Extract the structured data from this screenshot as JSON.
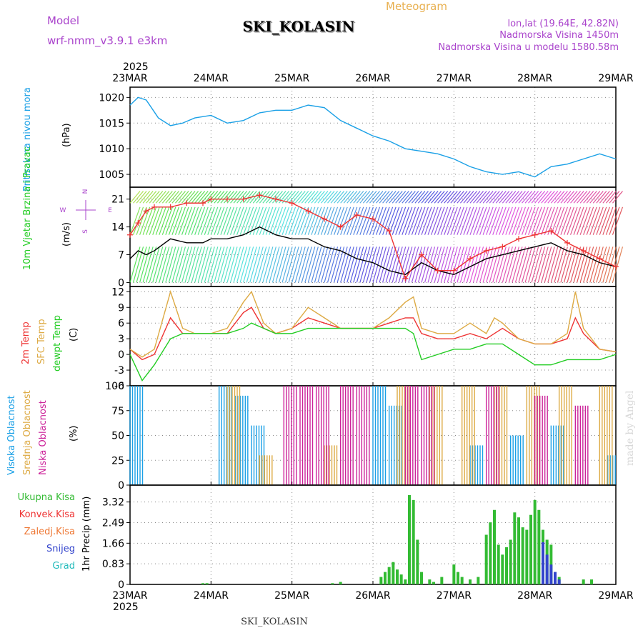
{
  "header": {
    "model_label": "Model",
    "model_name": "wrf-nmm_v3.9.1 e3km",
    "meteogram_label": "Meteogram",
    "station": "SKI_KOLASIN",
    "lonlat": "lon,lat (19.64E, 42.82N)",
    "elevation": "Nadmorska Visina 1450m",
    "model_elevation": "Nadmorska Visina u modelu 1580.58m",
    "made_by": "made by Angel",
    "footer_station": "SKI_KOLASIN"
  },
  "colors": {
    "pressure": "#1aa0e6",
    "wind_label": "#22cc22",
    "temp_2m": "#ee3333",
    "temp_sfc": "#ddaa44",
    "dewpoint": "#22cc22",
    "high_cloud": "#1aa0e6",
    "mid_cloud": "#ddaa44",
    "low_cloud": "#cc2299",
    "precip_total": "#33bb33",
    "precip_snow": "#3344cc",
    "wind_axis": "#aa44cc",
    "header_purple": "#aa44cc",
    "header_orange": "#e8b050"
  },
  "time_axis": {
    "year": "2025",
    "labels": [
      "23MAR",
      "24MAR",
      "25MAR",
      "26MAR",
      "27MAR",
      "28MAR",
      "29MAR"
    ]
  },
  "chart_data": [
    {
      "type": "line",
      "title": "Pritisak na nivou mora",
      "ylabel": "(hPa)",
      "ylim": [
        1002.5,
        1022
      ],
      "yticks": [
        "1005",
        "1010",
        "1015",
        "1020"
      ],
      "x_days": [
        0,
        0.1,
        0.2,
        0.35,
        0.5,
        0.65,
        0.8,
        1.0,
        1.2,
        1.4,
        1.6,
        1.8,
        2.0,
        2.2,
        2.4,
        2.6,
        2.8,
        3.0,
        3.2,
        3.4,
        3.6,
        3.8,
        4.0,
        4.2,
        4.4,
        4.6,
        4.8,
        5.0,
        5.2,
        5.4,
        5.6,
        5.8,
        6.0
      ],
      "series": [
        {
          "name": "MSLP",
          "values": [
            1018.5,
            1020.0,
            1019.5,
            1016.0,
            1014.5,
            1015.0,
            1016.0,
            1016.5,
            1015.0,
            1015.5,
            1017.0,
            1017.5,
            1017.5,
            1018.5,
            1018.0,
            1015.5,
            1014.0,
            1012.5,
            1011.5,
            1010.0,
            1009.5,
            1009.0,
            1008.0,
            1006.5,
            1005.5,
            1005.0,
            1005.5,
            1004.5,
            1006.5,
            1007.0,
            1008.0,
            1009.0,
            1008.0
          ]
        }
      ]
    },
    {
      "type": "line",
      "title": "10m Vjetar Brzina i Pravac",
      "ylabel": "(m/s)",
      "ylim": [
        -1,
        24
      ],
      "yticks": [
        "0",
        "7",
        "14",
        "21"
      ],
      "direction_legend": [
        "N",
        "E",
        "S",
        "W"
      ],
      "x_days": [
        0,
        0.1,
        0.2,
        0.3,
        0.5,
        0.7,
        0.9,
        1.0,
        1.2,
        1.4,
        1.6,
        1.8,
        2.0,
        2.2,
        2.4,
        2.6,
        2.8,
        3.0,
        3.2,
        3.4,
        3.6,
        3.8,
        4.0,
        4.2,
        4.4,
        4.6,
        4.8,
        5.0,
        5.2,
        5.4,
        5.6,
        5.8,
        6.0
      ],
      "series": [
        {
          "name": "Brzina",
          "values": [
            6,
            8,
            7,
            8,
            11,
            10,
            10,
            11,
            11,
            12,
            14,
            12,
            11,
            11,
            9,
            8,
            6,
            5,
            3,
            2,
            5,
            3,
            2,
            4,
            6,
            7,
            8,
            9,
            10,
            8,
            7,
            5,
            4
          ]
        },
        {
          "name": "Udari",
          "values": [
            12,
            15,
            18,
            19,
            19,
            20,
            20,
            21,
            21,
            21,
            22,
            21,
            20,
            18,
            16,
            14,
            17,
            16,
            13,
            1,
            7,
            3,
            3,
            6,
            8,
            9,
            11,
            12,
            13,
            10,
            8,
            6,
            4
          ]
        }
      ]
    },
    {
      "type": "line",
      "title": "2m Temp / SFC Temp / dewpt Temp",
      "ylabel": "(C)",
      "ylim": [
        -6,
        13
      ],
      "yticks": [
        "-6",
        "-3",
        "0",
        "3",
        "6",
        "9",
        "12"
      ],
      "x_days": [
        0,
        0.15,
        0.3,
        0.5,
        0.65,
        0.8,
        1.0,
        1.2,
        1.4,
        1.5,
        1.65,
        1.8,
        2.0,
        2.2,
        2.4,
        2.6,
        2.8,
        3.0,
        3.2,
        3.4,
        3.5,
        3.6,
        3.8,
        4.0,
        4.2,
        4.4,
        4.5,
        4.6,
        4.8,
        5.0,
        5.2,
        5.4,
        5.5,
        5.6,
        5.8,
        6.0
      ],
      "series": [
        {
          "name": "2m Temp",
          "values": [
            1,
            -1,
            0,
            7,
            4,
            4,
            4,
            4,
            8,
            9,
            5,
            4,
            5,
            7,
            6,
            5,
            5,
            5,
            6,
            7,
            7,
            4,
            3,
            3,
            4,
            3,
            4,
            5,
            3,
            2,
            2,
            3,
            7,
            4,
            1,
            0.5
          ]
        },
        {
          "name": "SFC Temp",
          "values": [
            1,
            -0.5,
            1,
            12,
            5,
            4,
            4,
            5,
            10,
            12,
            6,
            4,
            5,
            9,
            7,
            5,
            5,
            5,
            7,
            10,
            11,
            5,
            4,
            4,
            6,
            4,
            7,
            6,
            3,
            2,
            2,
            4,
            12,
            5,
            1,
            0.5
          ]
        },
        {
          "name": "dewpt Temp",
          "values": [
            0,
            -5,
            -2,
            3,
            4,
            4,
            4,
            4,
            5,
            6,
            5,
            4,
            4,
            5,
            5,
            5,
            5,
            5,
            5,
            5,
            4,
            -1,
            0,
            1,
            1,
            2,
            2,
            2,
            0,
            -2,
            -2,
            -1,
            -1,
            -1,
            -1,
            0
          ]
        }
      ]
    },
    {
      "type": "bar",
      "title": "Visoka / Srednja / Niska Oblacnost",
      "ylabel": "(%)",
      "ylim": [
        0,
        100
      ],
      "yticks": [
        "0",
        "25",
        "50",
        "75",
        "100"
      ],
      "series": [
        {
          "name": "Visoka Oblacnost",
          "days": [
            0.0,
            1.1,
            1.3,
            1.5,
            3.0,
            3.2,
            4.2,
            4.7,
            5.2,
            5.9
          ],
          "values": [
            100,
            100,
            90,
            60,
            100,
            80,
            40,
            50,
            60,
            30
          ]
        },
        {
          "name": "Srednja Oblacnost",
          "days": [
            1.2,
            1.6,
            2.4,
            3.3,
            3.7,
            4.1,
            4.5,
            4.9,
            5.3,
            5.8
          ],
          "values": [
            100,
            30,
            40,
            100,
            100,
            100,
            100,
            100,
            100,
            100
          ]
        },
        {
          "name": "Niska Oblacnost",
          "days": [
            1.9,
            2.1,
            2.3,
            2.6,
            2.8,
            3.4,
            3.6,
            4.4,
            5.0,
            5.5
          ],
          "values": [
            100,
            100,
            100,
            100,
            100,
            100,
            100,
            100,
            90,
            80
          ]
        }
      ]
    },
    {
      "type": "bar",
      "title": "1hr Precip",
      "ylabel": "1hr Precip (mm)",
      "ylim": [
        0,
        4
      ],
      "yticks": [
        "0",
        "0.83",
        "1.66",
        "2.49",
        "3.32"
      ],
      "legend": [
        "Ukupna Kisa",
        "Konvek.Kisa",
        "Zaledj.Kisa",
        "Snijeg",
        "Grad"
      ],
      "legend_colors": [
        "#33bb33",
        "#ee3333",
        "#ee7733",
        "#3344cc",
        "#22bbbb"
      ],
      "series": [
        {
          "name": "Ukupna Kisa",
          "days": [
            0.9,
            0.95,
            2.5,
            2.6,
            3.1,
            3.15,
            3.2,
            3.25,
            3.3,
            3.35,
            3.4,
            3.45,
            3.5,
            3.55,
            3.6,
            3.7,
            3.75,
            3.85,
            4.0,
            4.05,
            4.1,
            4.2,
            4.3,
            4.4,
            4.45,
            4.5,
            4.55,
            4.6,
            4.65,
            4.7,
            4.75,
            4.8,
            4.85,
            4.9,
            4.95,
            5.0,
            5.05,
            5.1,
            5.15,
            5.2,
            5.25,
            5.3,
            5.6,
            5.7
          ],
          "values": [
            0.05,
            0.05,
            0.05,
            0.1,
            0.3,
            0.5,
            0.7,
            0.9,
            0.6,
            0.4,
            0.2,
            3.6,
            3.4,
            1.8,
            0.5,
            0.2,
            0.1,
            0.3,
            0.8,
            0.5,
            0.3,
            0.2,
            0.3,
            2.0,
            2.5,
            3.0,
            1.6,
            1.2,
            1.5,
            1.8,
            2.9,
            2.7,
            2.3,
            2.2,
            2.8,
            3.4,
            3.0,
            2.2,
            1.8,
            1.6,
            0.5,
            0.3,
            0.2,
            0.2
          ]
        },
        {
          "name": "Snijeg",
          "days": [
            5.1,
            5.15,
            5.2,
            5.25,
            5.3
          ],
          "values": [
            1.7,
            1.2,
            0.8,
            0.5,
            0.2
          ]
        }
      ]
    }
  ]
}
